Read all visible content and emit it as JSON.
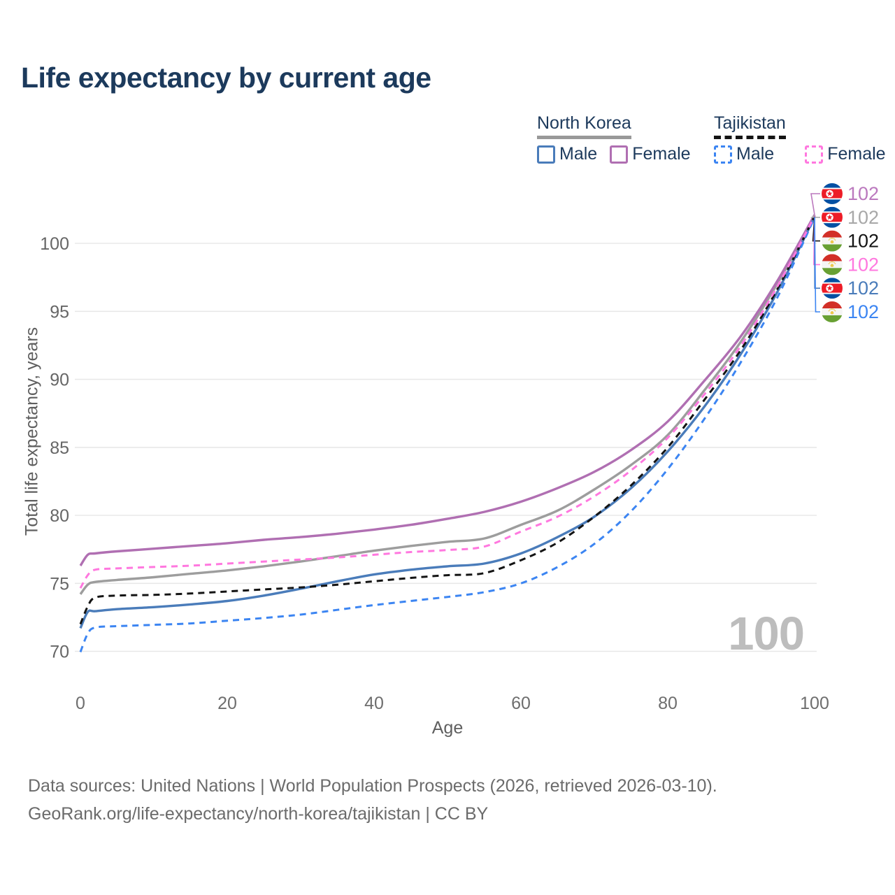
{
  "title": "Life expectancy by current age",
  "legend": {
    "groups": [
      {
        "name": "North Korea",
        "underline_style": "solid",
        "underline_color": "#999999",
        "items": [
          {
            "label": "Male",
            "color": "#4a7cba",
            "dashed": false
          },
          {
            "label": "Female",
            "color": "#b06fb2",
            "dashed": false
          }
        ]
      },
      {
        "name": "Tajikistan",
        "underline_style": "dashed",
        "underline_color": "#141414",
        "items": [
          {
            "label": "Male",
            "color": "#3c85f2",
            "dashed": true
          },
          {
            "label": "Female",
            "color": "#ff78df",
            "dashed": true
          }
        ]
      }
    ]
  },
  "chart_data": {
    "type": "line",
    "title": "Life expectancy by current age",
    "xlabel": "Age",
    "ylabel": "Total life expectancy, years",
    "watermark": "100",
    "xlim": [
      0,
      100
    ],
    "ylim": [
      69,
      103
    ],
    "xticks": [
      0,
      20,
      40,
      60,
      80,
      100
    ],
    "yticks": [
      70,
      75,
      80,
      85,
      90,
      95,
      100
    ],
    "grid": "horizontal",
    "legend_position": "top-right",
    "x": [
      0,
      1,
      2,
      5,
      10,
      15,
      20,
      25,
      30,
      35,
      40,
      45,
      50,
      55,
      60,
      65,
      70,
      75,
      80,
      85,
      90,
      95,
      100
    ],
    "series": [
      {
        "name": "North Korea Female",
        "color": "#b06fb2",
        "label_color": "#bb79be",
        "dashed": false,
        "flag": "north-korea",
        "end_label": "102",
        "values": [
          76.3,
          77.1,
          77.2,
          77.35,
          77.55,
          77.75,
          77.95,
          78.2,
          78.4,
          78.65,
          78.95,
          79.3,
          79.75,
          80.25,
          81.0,
          82.0,
          83.2,
          84.8,
          86.9,
          89.9,
          93.2,
          97.3,
          102.1
        ]
      },
      {
        "name": "North Korea",
        "color": "#9d9d9d",
        "label_color": "#a8a8a8",
        "dashed": false,
        "flag": "north-korea",
        "end_label": "102",
        "values": [
          74.2,
          74.9,
          75.1,
          75.25,
          75.45,
          75.7,
          75.95,
          76.25,
          76.6,
          77.0,
          77.4,
          77.75,
          78.05,
          78.3,
          79.3,
          80.35,
          81.9,
          83.7,
          85.9,
          89.2,
          92.8,
          97.1,
          102.05
        ]
      },
      {
        "name": "Tajikistan",
        "color": "#141414",
        "label_color": "#141414",
        "dashed": true,
        "flag": "tajikistan",
        "end_label": "102",
        "values": [
          72.0,
          73.3,
          73.95,
          74.1,
          74.15,
          74.25,
          74.4,
          74.55,
          74.7,
          74.9,
          75.15,
          75.4,
          75.6,
          75.75,
          76.7,
          78.0,
          79.9,
          82.2,
          85.0,
          88.5,
          92.2,
          96.7,
          102.0
        ]
      },
      {
        "name": "Tajikistan Female",
        "color": "#ff78df",
        "label_color": "#ff78df",
        "dashed": true,
        "flag": "tajikistan",
        "end_label": "102",
        "values": [
          74.65,
          75.6,
          76.0,
          76.1,
          76.2,
          76.3,
          76.45,
          76.6,
          76.75,
          76.9,
          77.1,
          77.3,
          77.45,
          77.7,
          78.8,
          79.9,
          81.4,
          83.3,
          85.7,
          88.9,
          92.5,
          96.9,
          102.0
        ]
      },
      {
        "name": "North Korea Male",
        "color": "#4a7cba",
        "label_color": "#4a7cba",
        "dashed": false,
        "flag": "north-korea",
        "end_label": "102",
        "values": [
          71.7,
          72.9,
          72.95,
          73.1,
          73.25,
          73.45,
          73.7,
          74.1,
          74.6,
          75.15,
          75.65,
          76.0,
          76.25,
          76.45,
          77.2,
          78.4,
          79.9,
          82.0,
          84.7,
          88.0,
          91.9,
          96.5,
          101.95
        ]
      },
      {
        "name": "Tajikistan Male",
        "color": "#3c85f2",
        "label_color": "#3c85f2",
        "dashed": true,
        "flag": "tajikistan",
        "end_label": "102",
        "values": [
          69.95,
          71.3,
          71.75,
          71.85,
          71.95,
          72.05,
          72.25,
          72.45,
          72.7,
          73.05,
          73.4,
          73.7,
          74.0,
          74.35,
          75.0,
          76.2,
          77.9,
          80.3,
          83.4,
          87.1,
          91.3,
          96.1,
          101.9
        ]
      }
    ]
  },
  "footer": {
    "line1": "Data sources: United Nations | World Population Prospects (2026, retrieved 2026-03-10).",
    "line2": "GeoRank.org/life-expectancy/north-korea/tajikistan | CC BY"
  }
}
